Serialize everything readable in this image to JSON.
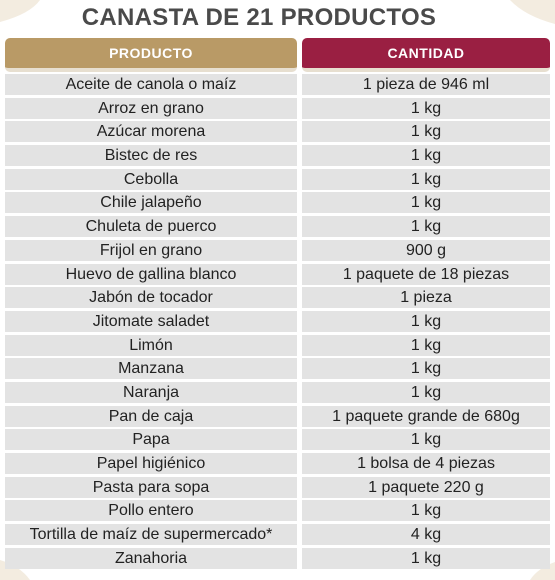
{
  "title": "CANASTA DE 21 PRODUCTOS",
  "header": {
    "product": "PRODUCTO",
    "quantity": "CANTIDAD"
  },
  "colors": {
    "product_header": "#b99a66",
    "quantity_header": "#9a1f42",
    "row_bg": "#e3e3e3",
    "title": "#4a4a4a"
  },
  "rows": [
    {
      "product": "Aceite de canola o maíz",
      "quantity": "1 pieza de 946 ml"
    },
    {
      "product": "Arroz en grano",
      "quantity": "1 kg"
    },
    {
      "product": "Azúcar morena",
      "quantity": "1 kg"
    },
    {
      "product": "Bistec de res",
      "quantity": "1 kg"
    },
    {
      "product": "Cebolla",
      "quantity": "1 kg"
    },
    {
      "product": "Chile jalapeño",
      "quantity": "1 kg"
    },
    {
      "product": "Chuleta de puerco",
      "quantity": "1 kg"
    },
    {
      "product": "Frijol en grano",
      "quantity": "900 g"
    },
    {
      "product": "Huevo de gallina blanco",
      "quantity": "1 paquete de 18 piezas"
    },
    {
      "product": "Jabón de tocador",
      "quantity": "1 pieza"
    },
    {
      "product": "Jitomate saladet",
      "quantity": "1 kg"
    },
    {
      "product": "Limón",
      "quantity": "1 kg"
    },
    {
      "product": "Manzana",
      "quantity": "1 kg"
    },
    {
      "product": "Naranja",
      "quantity": "1 kg"
    },
    {
      "product": "Pan de caja",
      "quantity": "1 paquete grande de 680g"
    },
    {
      "product": "Papa",
      "quantity": "1 kg"
    },
    {
      "product": "Papel higiénico",
      "quantity": "1 bolsa de 4 piezas"
    },
    {
      "product": "Pasta para sopa",
      "quantity": "1 paquete 220 g"
    },
    {
      "product": "Pollo entero",
      "quantity": "1 kg"
    },
    {
      "product": "Tortilla de maíz de supermercado*",
      "quantity": "4 kg"
    },
    {
      "product": "Zanahoria",
      "quantity": "1 kg"
    }
  ]
}
